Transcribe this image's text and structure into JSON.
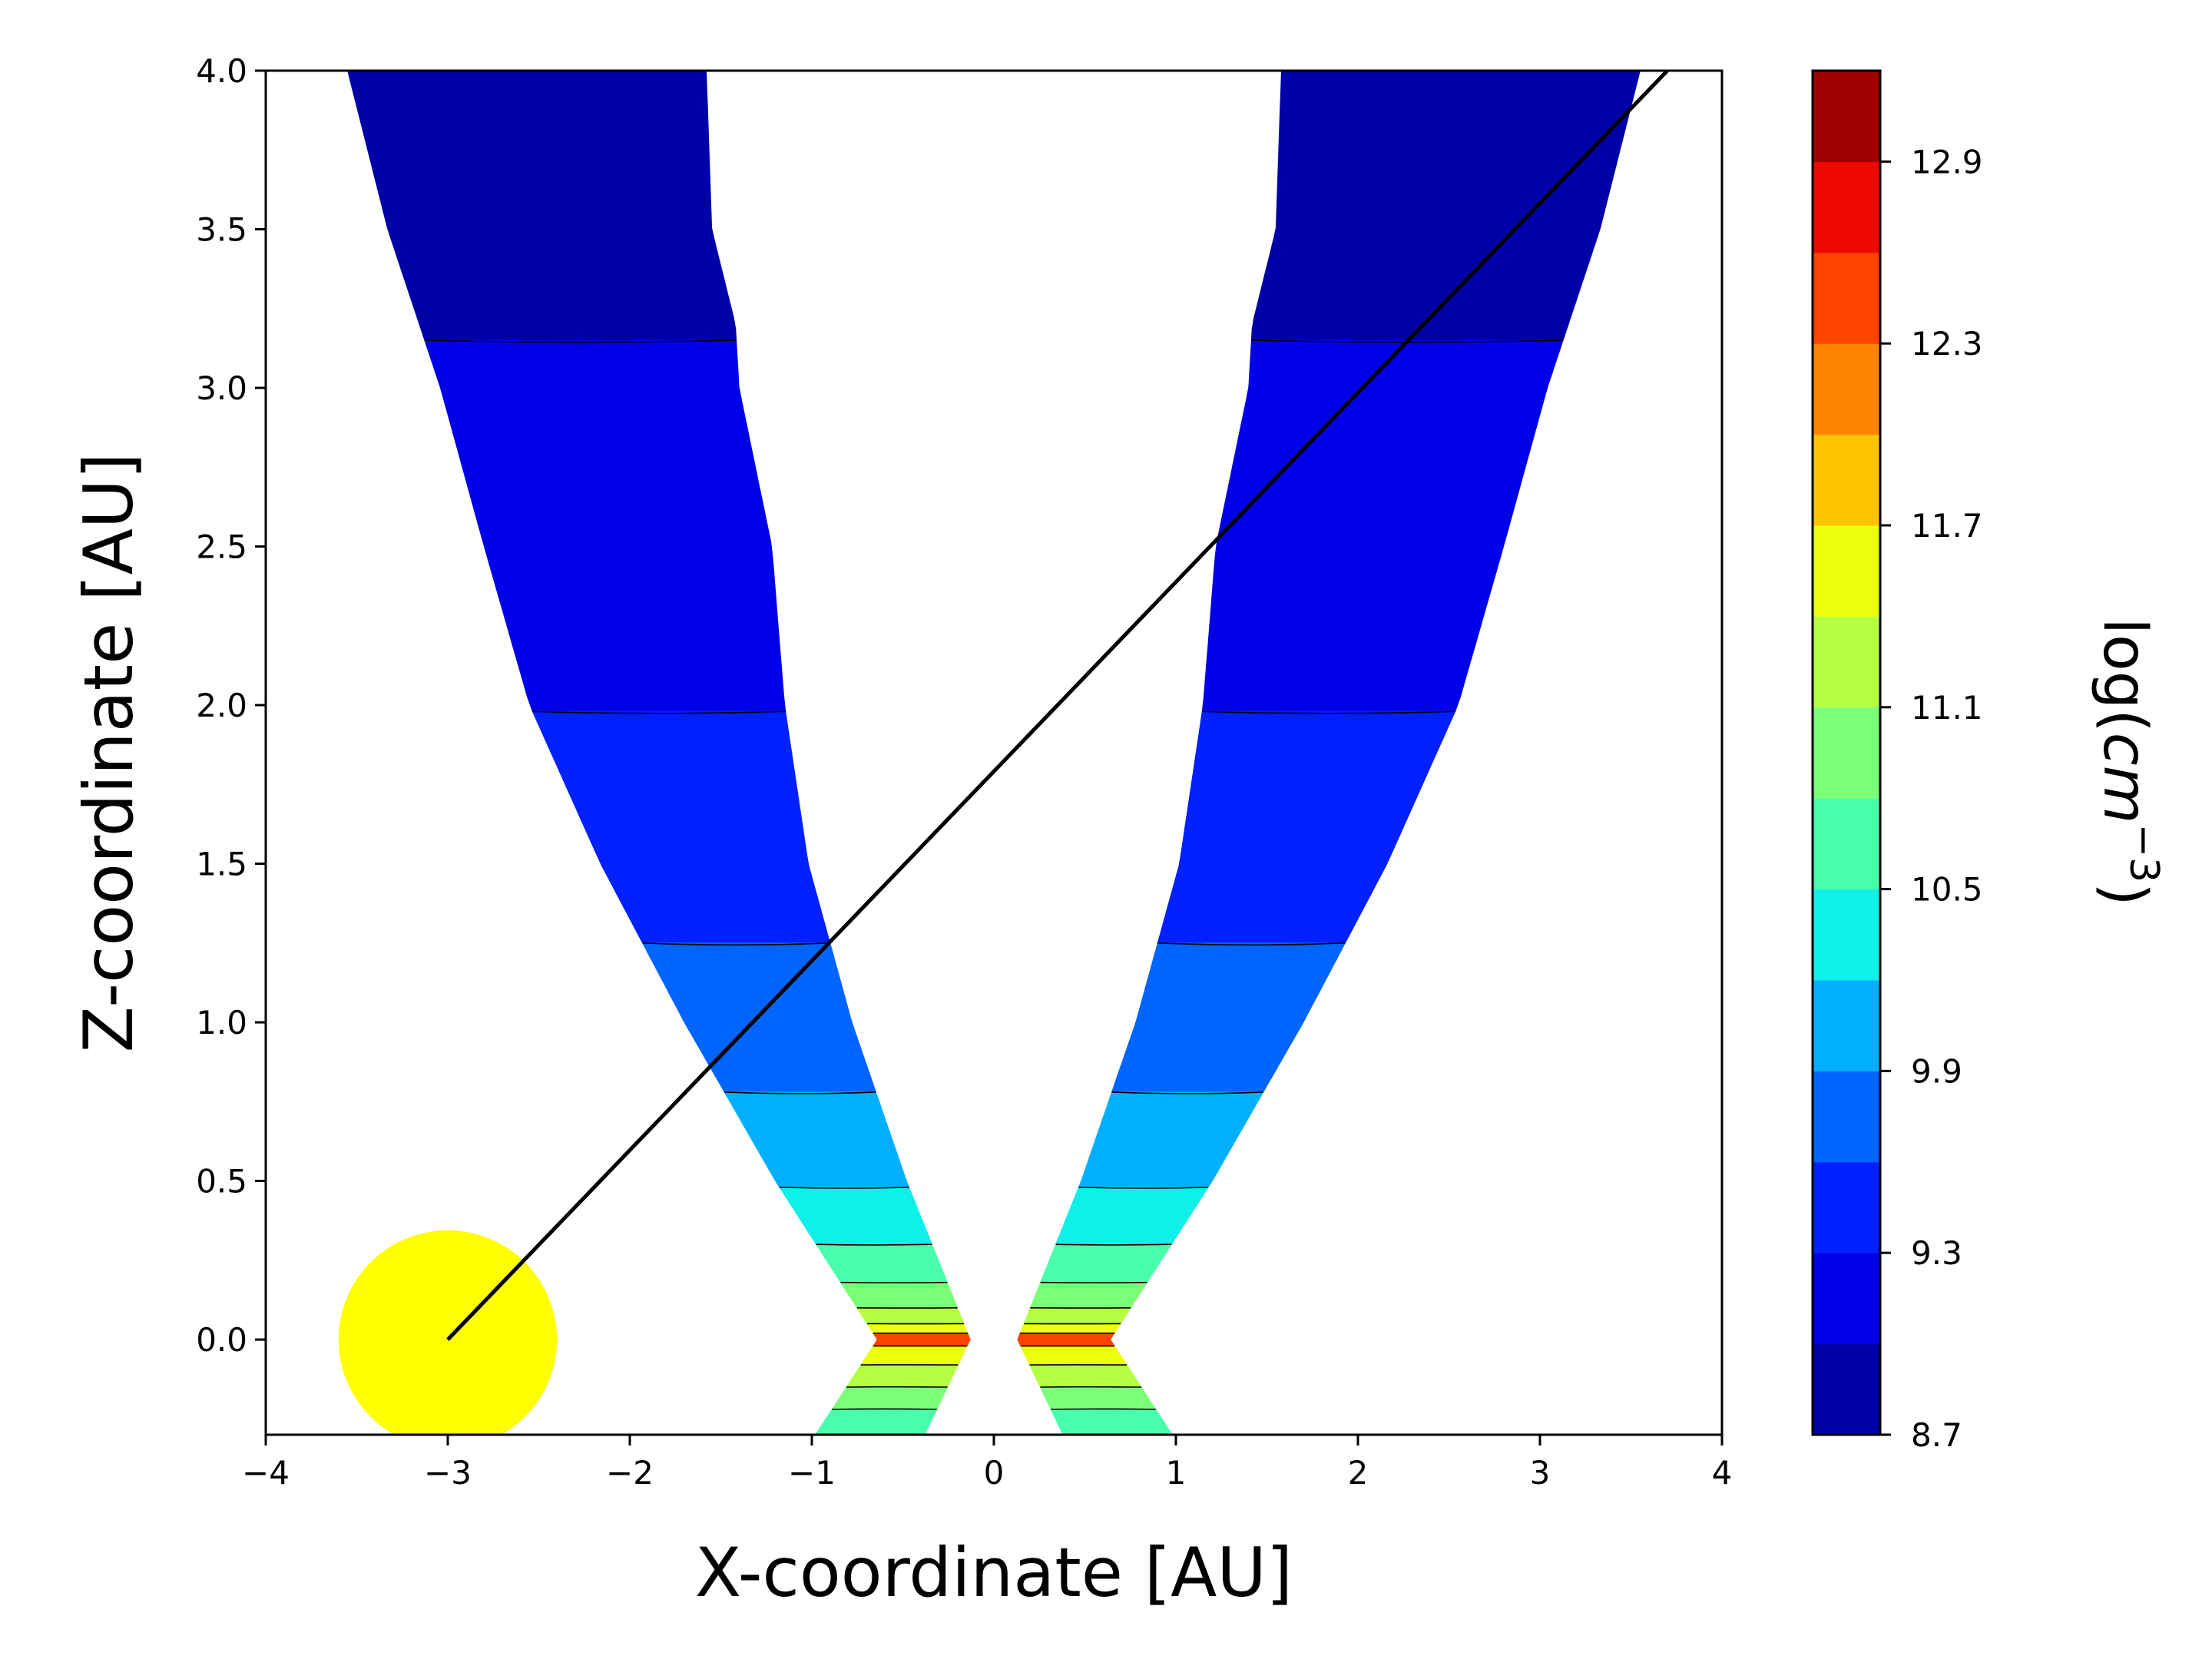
{
  "chart_data": {
    "type": "contour",
    "xlabel": "X-coordinate [AU]",
    "ylabel": "Z-coordinate [AU]",
    "xlim": [
      -4,
      4
    ],
    "ylim": [
      -0.3,
      4.0
    ],
    "xticks": [
      -4,
      -3,
      -2,
      -1,
      0,
      1,
      2,
      3,
      4
    ],
    "yticks": [
      0.0,
      0.5,
      1.0,
      1.5,
      2.0,
      2.5,
      3.0,
      3.5,
      4.0
    ],
    "xtick_labels": [
      "−4",
      "−3",
      "−2",
      "−1",
      "0",
      "1",
      "2",
      "3",
      "4"
    ],
    "ytick_labels": [
      "0.0",
      "0.5",
      "1.0",
      "1.5",
      "2.0",
      "2.5",
      "3.0",
      "3.5",
      "4.0"
    ],
    "colorbar": {
      "label_base": "log(",
      "label_var": "cm",
      "label_exp": "−3",
      "label_close": ")",
      "min": 8.7,
      "max": 13.2,
      "ticks": [
        8.7,
        9.3,
        9.9,
        10.5,
        11.1,
        11.7,
        12.3,
        12.9
      ],
      "tick_labels": [
        "8.7",
        "9.3",
        "9.9",
        "10.5",
        "11.1",
        "11.7",
        "12.3",
        "12.9"
      ],
      "levels": [
        8.7,
        9.0,
        9.3,
        9.6,
        9.9,
        10.2,
        10.5,
        10.8,
        11.1,
        11.4,
        11.7,
        12.0,
        12.3,
        12.6,
        12.9,
        13.2
      ],
      "colors": [
        "#0000a8",
        "#0000e8",
        "#0020ff",
        "#0064ff",
        "#00b0ff",
        "#0ff0e8",
        "#48ffac",
        "#7cff78",
        "#b4ff44",
        "#ecff0c",
        "#ffc400",
        "#ff8400",
        "#ff4400",
        "#ee0800",
        "#a00000"
      ]
    },
    "density_bands": [
      {
        "z_top": 4.0,
        "z_bottom": 3.15,
        "level": 8.85
      },
      {
        "z_top": 3.15,
        "z_bottom": 1.98,
        "level": 9.15
      },
      {
        "z_top": 1.98,
        "z_bottom": 1.25,
        "level": 9.45
      },
      {
        "z_top": 1.25,
        "z_bottom": 0.78,
        "level": 9.75
      },
      {
        "z_top": 0.78,
        "z_bottom": 0.48,
        "level": 10.05
      },
      {
        "z_top": 0.48,
        "z_bottom": 0.3,
        "level": 10.35
      },
      {
        "z_top": 0.3,
        "z_bottom": 0.18,
        "level": 10.65
      },
      {
        "z_top": 0.18,
        "z_bottom": 0.1,
        "level": 10.95
      },
      {
        "z_top": 0.1,
        "z_bottom": 0.05,
        "level": 11.25
      },
      {
        "z_top": 0.05,
        "z_bottom": 0.02,
        "level": 11.55
      },
      {
        "z_top": 0.02,
        "z_bottom": -0.02,
        "level": 12.45
      },
      {
        "z_top": -0.02,
        "z_bottom": -0.08,
        "level": 11.55
      },
      {
        "z_top": -0.08,
        "z_bottom": -0.15,
        "level": 11.25
      },
      {
        "z_top": -0.15,
        "z_bottom": -0.22,
        "level": 10.95
      },
      {
        "z_top": -0.22,
        "z_bottom": -0.3,
        "level": 10.65
      }
    ],
    "cone_inner_edge": [
      [
        -0.3,
        0.38
      ],
      [
        0.0,
        0.13
      ],
      [
        0.5,
        0.48
      ],
      [
        1.0,
        0.78
      ],
      [
        1.5,
        1.02
      ],
      [
        2.0,
        1.15
      ],
      [
        2.5,
        1.22
      ],
      [
        3.0,
        1.4
      ],
      [
        3.2,
        1.42
      ],
      [
        3.5,
        1.55
      ],
      [
        4.0,
        1.58
      ]
    ],
    "cone_outer_edge": [
      [
        -0.3,
        0.98
      ],
      [
        0.0,
        0.64
      ],
      [
        0.5,
        1.2
      ],
      [
        1.0,
        1.7
      ],
      [
        1.5,
        2.16
      ],
      [
        2.0,
        2.55
      ],
      [
        2.5,
        2.8
      ],
      [
        3.0,
        3.04
      ],
      [
        3.5,
        3.33
      ],
      [
        4.0,
        3.55
      ]
    ],
    "star": {
      "x": -3.0,
      "z": 0.0,
      "radius": 0.6,
      "color": "#ffff00"
    },
    "sight_line": {
      "x1": -3.0,
      "z1": 0.0,
      "x2": 3.7,
      "z2": 4.0,
      "color": "#000000"
    }
  }
}
